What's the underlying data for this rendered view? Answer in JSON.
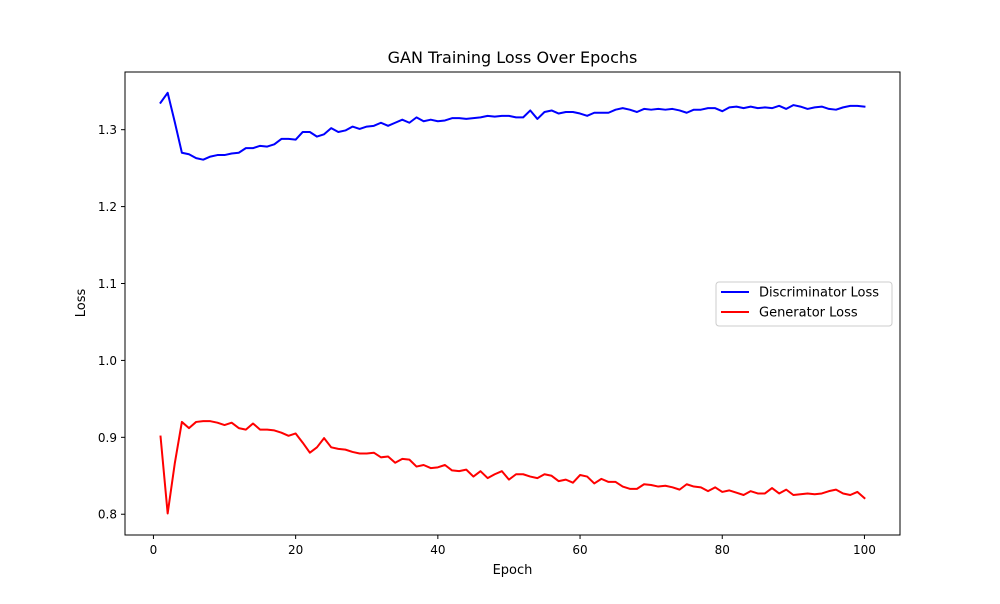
{
  "chart_data": {
    "type": "line",
    "title": "GAN Training Loss Over Epochs",
    "xlabel": "Epoch",
    "ylabel": "Loss",
    "xlim": [
      -4,
      105
    ],
    "ylim": [
      0.773,
      1.375
    ],
    "xticks": [
      0,
      20,
      40,
      60,
      80,
      100
    ],
    "yticks": [
      0.8,
      0.9,
      1.0,
      1.1,
      1.2,
      1.3
    ],
    "xtick_labels": [
      "0",
      "20",
      "40",
      "60",
      "80",
      "100"
    ],
    "ytick_labels": [
      "0.8",
      "0.9",
      "1.0",
      "1.1",
      "1.2",
      "1.3"
    ],
    "grid": false,
    "legend_position": "center-right",
    "x": [
      1,
      2,
      3,
      4,
      5,
      6,
      7,
      8,
      9,
      10,
      11,
      12,
      13,
      14,
      15,
      16,
      17,
      18,
      19,
      20,
      21,
      22,
      23,
      24,
      25,
      26,
      27,
      28,
      29,
      30,
      31,
      32,
      33,
      34,
      35,
      36,
      37,
      38,
      39,
      40,
      41,
      42,
      43,
      44,
      45,
      46,
      47,
      48,
      49,
      50,
      51,
      52,
      53,
      54,
      55,
      56,
      57,
      58,
      59,
      60,
      61,
      62,
      63,
      64,
      65,
      66,
      67,
      68,
      69,
      70,
      71,
      72,
      73,
      74,
      75,
      76,
      77,
      78,
      79,
      80,
      81,
      82,
      83,
      84,
      85,
      86,
      87,
      88,
      89,
      90,
      91,
      92,
      93,
      94,
      95,
      96,
      97,
      98,
      99,
      100
    ],
    "series": [
      {
        "name": "Discriminator Loss",
        "color": "#0000ff",
        "values": [
          1.335,
          1.348,
          1.31,
          1.27,
          1.268,
          1.263,
          1.261,
          1.265,
          1.267,
          1.267,
          1.269,
          1.27,
          1.276,
          1.276,
          1.279,
          1.278,
          1.281,
          1.288,
          1.288,
          1.287,
          1.297,
          1.297,
          1.291,
          1.294,
          1.302,
          1.297,
          1.299,
          1.304,
          1.301,
          1.304,
          1.305,
          1.309,
          1.305,
          1.309,
          1.313,
          1.309,
          1.316,
          1.311,
          1.313,
          1.311,
          1.312,
          1.315,
          1.315,
          1.314,
          1.315,
          1.316,
          1.318,
          1.317,
          1.318,
          1.318,
          1.316,
          1.316,
          1.325,
          1.314,
          1.323,
          1.325,
          1.321,
          1.323,
          1.323,
          1.321,
          1.318,
          1.322,
          1.322,
          1.322,
          1.326,
          1.328,
          1.326,
          1.323,
          1.327,
          1.326,
          1.327,
          1.326,
          1.327,
          1.325,
          1.322,
          1.326,
          1.326,
          1.328,
          1.328,
          1.324,
          1.329,
          1.33,
          1.328,
          1.33,
          1.328,
          1.329,
          1.328,
          1.331,
          1.327,
          1.332,
          1.33,
          1.327,
          1.329,
          1.33,
          1.327,
          1.326,
          1.329,
          1.331,
          1.331,
          1.33
        ]
      },
      {
        "name": "Generator Loss",
        "color": "#ff0000",
        "values": [
          0.901,
          0.801,
          0.866,
          0.92,
          0.912,
          0.92,
          0.921,
          0.921,
          0.919,
          0.916,
          0.919,
          0.912,
          0.91,
          0.918,
          0.91,
          0.91,
          0.909,
          0.906,
          0.902,
          0.905,
          0.893,
          0.88,
          0.887,
          0.899,
          0.887,
          0.885,
          0.884,
          0.881,
          0.879,
          0.879,
          0.88,
          0.874,
          0.875,
          0.867,
          0.872,
          0.871,
          0.862,
          0.864,
          0.86,
          0.861,
          0.864,
          0.857,
          0.856,
          0.858,
          0.849,
          0.856,
          0.847,
          0.852,
          0.856,
          0.845,
          0.852,
          0.852,
          0.849,
          0.847,
          0.852,
          0.85,
          0.843,
          0.845,
          0.841,
          0.851,
          0.849,
          0.84,
          0.846,
          0.842,
          0.842,
          0.836,
          0.833,
          0.833,
          0.839,
          0.838,
          0.836,
          0.837,
          0.835,
          0.832,
          0.839,
          0.836,
          0.835,
          0.83,
          0.835,
          0.829,
          0.831,
          0.828,
          0.825,
          0.83,
          0.827,
          0.827,
          0.834,
          0.827,
          0.832,
          0.825,
          0.826,
          0.827,
          0.826,
          0.827,
          0.83,
          0.832,
          0.827,
          0.825,
          0.829,
          0.821
        ]
      }
    ]
  }
}
